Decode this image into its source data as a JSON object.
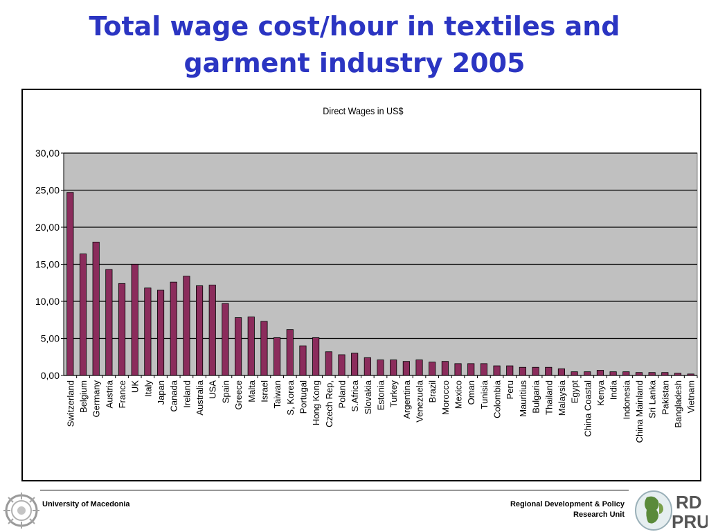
{
  "slide": {
    "title_line1": "Total wage cost/hour in textiles and",
    "title_line2": "garment industry 2005"
  },
  "footer": {
    "university": "University of Macedonia",
    "unit_line1": "Regional Development & Policy",
    "unit_line2": "Research Unit",
    "logo_text_top": "RD",
    "logo_text_bottom": "PRU"
  },
  "colors": {
    "title": "#2b35c2",
    "bar_fill": "#8b2c5c",
    "plot_background": "#c0c0c0"
  },
  "chart_data": {
    "type": "bar",
    "title": "Direct Wages in US$",
    "xlabel": "",
    "ylabel": "",
    "ylim": [
      0,
      30
    ],
    "yticks": [
      "0,00",
      "5,00",
      "10,00",
      "15,00",
      "20,00",
      "25,00",
      "30,00"
    ],
    "grid": true,
    "legend": "none",
    "categories": [
      "Switzerland",
      "Belgium",
      "Germany",
      "Austria",
      "France",
      "UK",
      "Italy",
      "Japan",
      "Canada",
      "Ireland",
      "Australia",
      "USA",
      "Spain",
      "Greece",
      "Malta",
      "Israel",
      "Taiwan",
      "S, Korea",
      "Portugal",
      "Hong Kong",
      "Czech Rep,",
      "Poland",
      "S.Africa",
      "Slovakia",
      "Estonia",
      "Turkey",
      "Argentina",
      "Venezuela",
      "Brazil",
      "Morocco",
      "Mexico",
      "Oman",
      "Tunisia",
      "Colombia",
      "Peru",
      "Mauritius",
      "Bulgaria",
      "Thailand",
      "Malaysia",
      "Egypt",
      "China Coastal",
      "Kenya",
      "India",
      "Indonesia",
      "China Mainland",
      "Sri Lanka",
      "Pakistan",
      "Bangladesh",
      "Vietnam"
    ],
    "values": [
      24.7,
      16.4,
      18.0,
      14.3,
      12.4,
      15.0,
      11.8,
      11.5,
      12.6,
      13.4,
      12.1,
      12.2,
      9.7,
      7.8,
      7.9,
      7.3,
      5.1,
      6.2,
      4.0,
      5.1,
      3.2,
      2.8,
      3.0,
      2.4,
      2.1,
      2.1,
      1.9,
      2.1,
      1.8,
      1.9,
      1.6,
      1.6,
      1.6,
      1.3,
      1.3,
      1.1,
      1.1,
      1.1,
      0.9,
      0.5,
      0.5,
      0.7,
      0.5,
      0.5,
      0.4,
      0.4,
      0.4,
      0.3,
      0.2
    ]
  }
}
